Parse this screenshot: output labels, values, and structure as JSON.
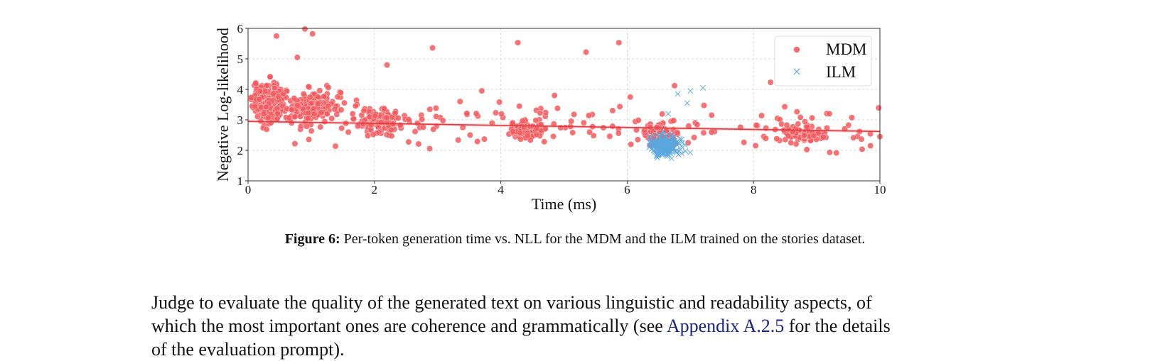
{
  "chart_data": {
    "type": "scatter",
    "title": "",
    "xlabel": "Time (ms)",
    "ylabel": "Negative Log-likelihood",
    "xlim": [
      0,
      10
    ],
    "ylim": [
      1,
      6
    ],
    "xticks": [
      0,
      2,
      4,
      6,
      8,
      10
    ],
    "yticks": [
      1,
      2,
      3,
      4,
      5,
      6
    ],
    "grid": true,
    "legend_position": "top-right",
    "series": [
      {
        "name": "MDM",
        "marker": "circle",
        "color": "#f25a5f",
        "clusters": [
          {
            "x_center": 0.35,
            "y_center": 3.6,
            "x_spread": 0.25,
            "y_spread": 0.55,
            "count": 260
          },
          {
            "x_center": 1.05,
            "y_center": 3.4,
            "x_spread": 0.35,
            "y_spread": 0.45,
            "count": 170
          },
          {
            "x_center": 2.05,
            "y_center": 3.0,
            "x_spread": 0.35,
            "y_spread": 0.35,
            "count": 110
          },
          {
            "x_center": 4.4,
            "y_center": 2.65,
            "x_spread": 0.25,
            "y_spread": 0.25,
            "count": 90
          },
          {
            "x_center": 6.5,
            "y_center": 2.55,
            "x_spread": 0.25,
            "y_spread": 0.3,
            "count": 80
          },
          {
            "x_center": 8.8,
            "y_center": 2.55,
            "x_spread": 0.3,
            "y_spread": 0.22,
            "count": 95
          }
        ],
        "notable_points": [
          [
            0.45,
            5.75
          ],
          [
            0.9,
            5.98
          ],
          [
            1.02,
            5.82
          ],
          [
            2.92,
            5.36
          ],
          [
            4.27,
            5.53
          ],
          [
            5.35,
            5.22
          ],
          [
            5.87,
            5.53
          ],
          [
            6.75,
            4.12
          ],
          [
            8.27,
            4.23
          ],
          [
            0.78,
            5.05
          ],
          [
            2.2,
            4.8
          ],
          [
            3.7,
            3.95
          ],
          [
            4.85,
            3.8
          ],
          [
            6.05,
            3.75
          ],
          [
            9.2,
            3.2
          ],
          [
            9.85,
            2.15
          ],
          [
            10.0,
            2.45
          ]
        ],
        "trend_line": {
          "x": [
            0.0,
            10.0
          ],
          "y": [
            2.95,
            2.62
          ]
        }
      },
      {
        "name": "ILM",
        "marker": "x",
        "color": "#5aa7de",
        "clusters": [
          {
            "x_center": 6.6,
            "y_center": 2.15,
            "x_spread": 0.22,
            "y_spread": 0.3,
            "count": 190
          }
        ],
        "notable_points": [
          [
            6.8,
            3.85
          ],
          [
            7.0,
            3.95
          ],
          [
            7.2,
            4.05
          ],
          [
            6.95,
            3.55
          ],
          [
            6.35,
            2.45
          ],
          [
            6.65,
            3.2
          ]
        ]
      }
    ]
  },
  "caption": {
    "label": "Figure 6:",
    "text": "Per-token generation time vs. NLL for the MDM and the ILM trained on the stories dataset."
  },
  "body": {
    "line1": "Judge to evaluate the quality of the generated text on various linguistic and readability aspects, of",
    "line2_before": "which the most important ones are coherence and grammatically (see ",
    "line2_link": "Appendix A.2.5",
    "line2_after": " for the details",
    "line3": "of the evaluation prompt)."
  }
}
